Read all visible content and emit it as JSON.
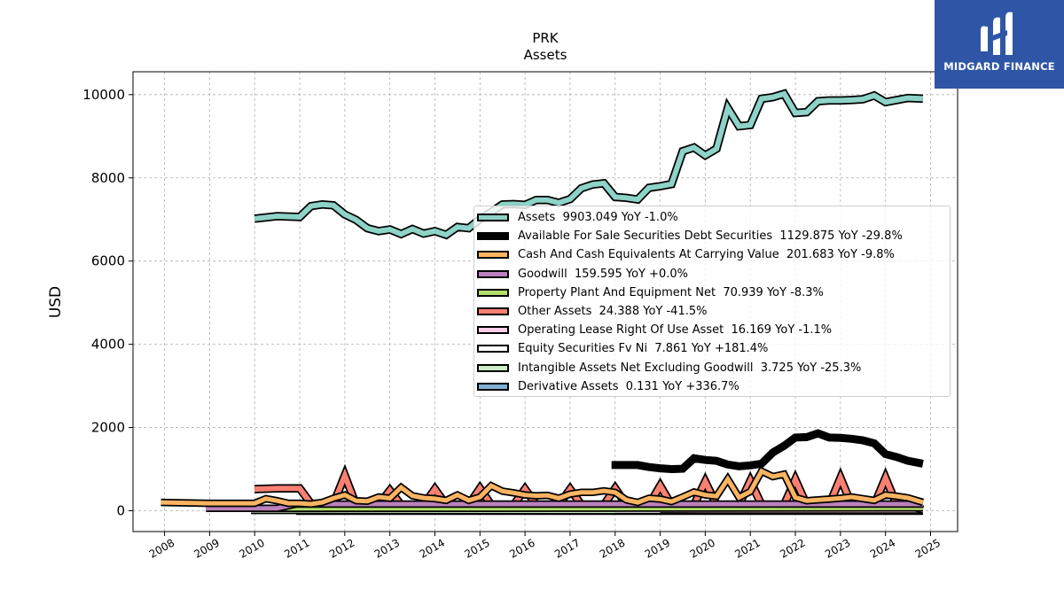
{
  "brand": {
    "name": "MIDGARD FINANCE",
    "logo_icon": "midgard-logo-icon"
  },
  "chart_data": {
    "type": "line",
    "title": "PRK",
    "subtitle": "Assets",
    "ylabel": "USD",
    "xlabel": "",
    "xlim": [
      2007.3,
      2025.6
    ],
    "ylim": [
      -500,
      10550
    ],
    "xticks": [
      "2008",
      "2009",
      "2010",
      "2011",
      "2012",
      "2013",
      "2014",
      "2015",
      "2016",
      "2017",
      "2018",
      "2019",
      "2020",
      "2021",
      "2022",
      "2023",
      "2024",
      "2025"
    ],
    "yticks": [
      "0",
      "2000",
      "4000",
      "6000",
      "8000",
      "10000"
    ],
    "grid": true,
    "legend_position": "center-right",
    "series": [
      {
        "name": "Assets  9903.049 YoY -1.0%",
        "color": "#8dd3c7",
        "outline": true,
        "width": 6,
        "points": [
          [
            2010.0,
            7020
          ],
          [
            2010.5,
            7080
          ],
          [
            2011.0,
            7060
          ],
          [
            2011.25,
            7320
          ],
          [
            2011.5,
            7360
          ],
          [
            2011.75,
            7340
          ],
          [
            2012.0,
            7120
          ],
          [
            2012.25,
            6990
          ],
          [
            2012.5,
            6790
          ],
          [
            2012.75,
            6720
          ],
          [
            2013.0,
            6760
          ],
          [
            2013.25,
            6650
          ],
          [
            2013.5,
            6770
          ],
          [
            2013.75,
            6660
          ],
          [
            2014.0,
            6720
          ],
          [
            2014.25,
            6630
          ],
          [
            2014.5,
            6820
          ],
          [
            2014.75,
            6790
          ],
          [
            2015.0,
            7010
          ],
          [
            2015.25,
            7180
          ],
          [
            2015.5,
            7360
          ],
          [
            2015.75,
            7370
          ],
          [
            2016.0,
            7350
          ],
          [
            2016.25,
            7470
          ],
          [
            2016.5,
            7470
          ],
          [
            2016.75,
            7400
          ],
          [
            2017.0,
            7490
          ],
          [
            2017.25,
            7750
          ],
          [
            2017.5,
            7840
          ],
          [
            2017.75,
            7870
          ],
          [
            2018.0,
            7540
          ],
          [
            2018.25,
            7520
          ],
          [
            2018.5,
            7480
          ],
          [
            2018.75,
            7760
          ],
          [
            2019.0,
            7800
          ],
          [
            2019.25,
            7850
          ],
          [
            2019.5,
            8640
          ],
          [
            2019.75,
            8730
          ],
          [
            2020.0,
            8540
          ],
          [
            2020.25,
            8700
          ],
          [
            2020.5,
            9680
          ],
          [
            2020.75,
            9240
          ],
          [
            2021.0,
            9270
          ],
          [
            2021.25,
            9900
          ],
          [
            2021.5,
            9940
          ],
          [
            2021.75,
            10020
          ],
          [
            2022.0,
            9560
          ],
          [
            2022.25,
            9580
          ],
          [
            2022.5,
            9840
          ],
          [
            2022.75,
            9860
          ],
          [
            2023.0,
            9860
          ],
          [
            2023.25,
            9870
          ],
          [
            2023.5,
            9890
          ],
          [
            2023.75,
            9980
          ],
          [
            2024.0,
            9820
          ],
          [
            2024.25,
            9870
          ],
          [
            2024.5,
            9920
          ],
          [
            2024.83,
            9903
          ]
        ]
      },
      {
        "name": "Available For Sale Securities Debt Securities  1129.875 YoY -29.8%",
        "color": "#000000",
        "outline": false,
        "width": 9,
        "points": [
          [
            2017.92,
            1100
          ],
          [
            2018.25,
            1100
          ],
          [
            2018.5,
            1100
          ],
          [
            2018.75,
            1050
          ],
          [
            2019.0,
            1020
          ],
          [
            2019.25,
            1000
          ],
          [
            2019.5,
            1010
          ],
          [
            2019.75,
            1260
          ],
          [
            2020.0,
            1220
          ],
          [
            2020.25,
            1200
          ],
          [
            2020.5,
            1110
          ],
          [
            2020.75,
            1070
          ],
          [
            2021.0,
            1090
          ],
          [
            2021.25,
            1130
          ],
          [
            2021.5,
            1400
          ],
          [
            2021.75,
            1560
          ],
          [
            2022.0,
            1760
          ],
          [
            2022.25,
            1770
          ],
          [
            2022.5,
            1860
          ],
          [
            2022.75,
            1760
          ],
          [
            2023.0,
            1750
          ],
          [
            2023.25,
            1730
          ],
          [
            2023.5,
            1690
          ],
          [
            2023.75,
            1620
          ],
          [
            2024.0,
            1360
          ],
          [
            2024.25,
            1290
          ],
          [
            2024.5,
            1200
          ],
          [
            2024.83,
            1130
          ]
        ]
      },
      {
        "name": "Cash And Cash Equivalents At Carrying Value  201.683 YoY -9.8%",
        "color": "#fdb462",
        "outline": true,
        "width": 5,
        "points": [
          [
            2007.92,
            200
          ],
          [
            2009.0,
            180
          ],
          [
            2010.0,
            180
          ],
          [
            2010.25,
            290
          ],
          [
            2010.5,
            240
          ],
          [
            2010.75,
            180
          ],
          [
            2011.0,
            180
          ],
          [
            2011.25,
            160
          ],
          [
            2011.5,
            200
          ],
          [
            2011.75,
            300
          ],
          [
            2012.0,
            380
          ],
          [
            2012.25,
            240
          ],
          [
            2012.5,
            230
          ],
          [
            2012.75,
            330
          ],
          [
            2013.0,
            300
          ],
          [
            2013.25,
            560
          ],
          [
            2013.5,
            360
          ],
          [
            2013.75,
            310
          ],
          [
            2014.0,
            290
          ],
          [
            2014.25,
            250
          ],
          [
            2014.5,
            380
          ],
          [
            2014.75,
            250
          ],
          [
            2015.0,
            330
          ],
          [
            2015.25,
            600
          ],
          [
            2015.5,
            470
          ],
          [
            2015.75,
            430
          ],
          [
            2016.0,
            380
          ],
          [
            2016.25,
            360
          ],
          [
            2016.5,
            370
          ],
          [
            2016.75,
            300
          ],
          [
            2017.0,
            400
          ],
          [
            2017.25,
            440
          ],
          [
            2017.5,
            440
          ],
          [
            2017.75,
            480
          ],
          [
            2018.0,
            440
          ],
          [
            2018.25,
            260
          ],
          [
            2018.5,
            200
          ],
          [
            2018.75,
            300
          ],
          [
            2019.0,
            280
          ],
          [
            2019.25,
            220
          ],
          [
            2019.5,
            330
          ],
          [
            2019.75,
            450
          ],
          [
            2020.0,
            380
          ],
          [
            2020.25,
            350
          ],
          [
            2020.5,
            760
          ],
          [
            2020.75,
            320
          ],
          [
            2021.0,
            460
          ],
          [
            2021.25,
            950
          ],
          [
            2021.5,
            820
          ],
          [
            2021.75,
            880
          ],
          [
            2022.0,
            320
          ],
          [
            2022.25,
            240
          ],
          [
            2022.5,
            260
          ],
          [
            2022.75,
            280
          ],
          [
            2023.0,
            300
          ],
          [
            2023.25,
            330
          ],
          [
            2023.5,
            290
          ],
          [
            2023.75,
            250
          ],
          [
            2024.0,
            380
          ],
          [
            2024.25,
            350
          ],
          [
            2024.5,
            310
          ],
          [
            2024.83,
            202
          ]
        ]
      },
      {
        "name": "Goodwill  159.595 YoY +0.0%",
        "color": "#bc80bd",
        "outline": true,
        "width": 5,
        "points": [
          [
            2008.92,
            60
          ],
          [
            2009.5,
            60
          ],
          [
            2010.0,
            60
          ],
          [
            2010.5,
            60
          ],
          [
            2010.92,
            160
          ],
          [
            2024.83,
            160
          ]
        ]
      },
      {
        "name": "Property Plant And Equipment Net  70.939 YoY -8.3%",
        "color": "#b3de69",
        "outline": true,
        "width": 5,
        "points": [
          [
            2009.92,
            60
          ],
          [
            2015.0,
            60
          ],
          [
            2020.0,
            65
          ],
          [
            2024.83,
            71
          ]
        ]
      },
      {
        "name": "Other Assets  24.388 YoY -41.5%",
        "color": "#fb8072",
        "outline": true,
        "width": 6,
        "points": [
          [
            2010.0,
            520
          ],
          [
            2010.5,
            540
          ],
          [
            2011.0,
            540
          ],
          [
            2011.25,
            170
          ],
          [
            2011.75,
            170
          ],
          [
            2012.0,
            850
          ],
          [
            2012.25,
            140
          ],
          [
            2012.75,
            140
          ],
          [
            2013.0,
            490
          ],
          [
            2013.25,
            140
          ],
          [
            2013.75,
            140
          ],
          [
            2014.0,
            520
          ],
          [
            2014.25,
            140
          ],
          [
            2014.75,
            140
          ],
          [
            2015.0,
            540
          ],
          [
            2015.25,
            140
          ],
          [
            2015.75,
            140
          ],
          [
            2016.0,
            520
          ],
          [
            2016.25,
            140
          ],
          [
            2016.75,
            140
          ],
          [
            2017.0,
            520
          ],
          [
            2017.25,
            140
          ],
          [
            2017.75,
            140
          ],
          [
            2018.0,
            540
          ],
          [
            2018.25,
            140
          ],
          [
            2018.75,
            140
          ],
          [
            2019.0,
            600
          ],
          [
            2019.25,
            140
          ],
          [
            2019.75,
            140
          ],
          [
            2020.0,
            700
          ],
          [
            2020.25,
            140
          ],
          [
            2020.75,
            140
          ],
          [
            2021.0,
            720
          ],
          [
            2021.25,
            140
          ],
          [
            2021.75,
            140
          ],
          [
            2022.0,
            750
          ],
          [
            2022.25,
            140
          ],
          [
            2022.75,
            140
          ],
          [
            2023.0,
            790
          ],
          [
            2023.25,
            140
          ],
          [
            2023.75,
            140
          ],
          [
            2024.0,
            790
          ],
          [
            2024.25,
            140
          ],
          [
            2024.5,
            140
          ],
          [
            2024.83,
            24
          ]
        ]
      },
      {
        "name": "Operating Lease Right Of Use Asset  16.169 YoY -1.1%",
        "color": "#fccde5",
        "outline": true,
        "width": 5,
        "points": [
          [
            2019.0,
            20
          ],
          [
            2020.0,
            18
          ],
          [
            2022.0,
            17
          ],
          [
            2024.83,
            16
          ]
        ]
      },
      {
        "name": "Equity Securities Fv Ni  7.861 YoY +181.4%",
        "color": "#ffffff",
        "outline": true,
        "width": 5,
        "points": [
          [
            2018.0,
            5
          ],
          [
            2020.0,
            6
          ],
          [
            2022.0,
            4
          ],
          [
            2024.83,
            8
          ]
        ]
      },
      {
        "name": "Intangible Assets Net Excluding Goodwill  3.725 YoY -25.3%",
        "color": "#ccebc5",
        "outline": true,
        "width": 6,
        "points": [
          [
            2009.92,
            20
          ],
          [
            2010.92,
            20
          ],
          [
            2012.0,
            15
          ],
          [
            2020.0,
            8
          ],
          [
            2024.83,
            4
          ]
        ]
      },
      {
        "name": "Derivative Assets  0.131 YoY +336.7%",
        "color": "#80b1d3",
        "outline": true,
        "width": 6,
        "points": [
          [
            2010.92,
            0
          ],
          [
            2015.0,
            0
          ],
          [
            2020.0,
            0
          ],
          [
            2024.83,
            0
          ]
        ]
      }
    ]
  }
}
